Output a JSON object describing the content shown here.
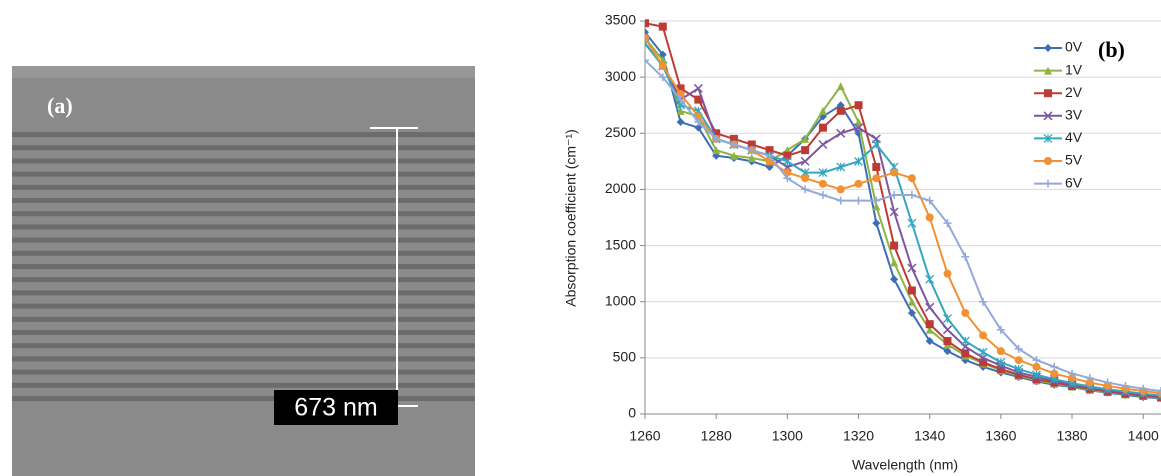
{
  "image": {
    "panel_label": "(a)",
    "scale_label": "673 nm"
  },
  "chart_data": {
    "type": "line",
    "panel_label": "(b)",
    "xlabel": "Wavelength (nm)",
    "ylabel": "Absorption coefficient (cm⁻¹)",
    "x": [
      1260,
      1265,
      1270,
      1275,
      1280,
      1285,
      1290,
      1295,
      1300,
      1305,
      1310,
      1315,
      1320,
      1325,
      1330,
      1335,
      1340,
      1345,
      1350,
      1355,
      1360,
      1365,
      1370,
      1375,
      1380,
      1385,
      1390,
      1395,
      1400,
      1405
    ],
    "series": [
      {
        "name": "0V",
        "color": "#3d6eb4",
        "marker": "diamond",
        "values": [
          3400,
          3200,
          2600,
          2550,
          2300,
          2280,
          2250,
          2200,
          2300,
          2450,
          2650,
          2750,
          2500,
          1700,
          1200,
          900,
          650,
          560,
          480,
          420,
          370,
          330,
          290,
          260,
          240,
          210,
          190,
          170,
          150,
          140
        ]
      },
      {
        "name": "1V",
        "color": "#8db443",
        "marker": "triangle",
        "values": [
          3350,
          3150,
          2700,
          2650,
          2350,
          2300,
          2280,
          2250,
          2350,
          2450,
          2700,
          2920,
          2600,
          1850,
          1350,
          1000,
          750,
          620,
          520,
          450,
          390,
          340,
          300,
          270,
          245,
          215,
          195,
          175,
          160,
          145
        ]
      },
      {
        "name": "2V",
        "color": "#be3a34",
        "marker": "square",
        "values": [
          3480,
          3450,
          2900,
          2800,
          2500,
          2450,
          2400,
          2350,
          2300,
          2350,
          2550,
          2700,
          2750,
          2200,
          1500,
          1100,
          800,
          650,
          540,
          460,
          400,
          350,
          310,
          280,
          250,
          225,
          200,
          180,
          165,
          150
        ]
      },
      {
        "name": "3V",
        "color": "#7d56a2",
        "marker": "cross",
        "values": [
          3300,
          3100,
          2800,
          2900,
          2450,
          2400,
          2350,
          2300,
          2200,
          2250,
          2400,
          2500,
          2550,
          2450,
          1800,
          1300,
          950,
          750,
          600,
          500,
          430,
          370,
          330,
          295,
          260,
          235,
          210,
          190,
          175,
          160
        ]
      },
      {
        "name": "4V",
        "color": "#35a7bf",
        "marker": "star",
        "values": [
          3300,
          3100,
          2750,
          2700,
          2450,
          2400,
          2350,
          2300,
          2250,
          2150,
          2150,
          2200,
          2250,
          2400,
          2200,
          1700,
          1200,
          850,
          650,
          550,
          460,
          400,
          350,
          310,
          275,
          245,
          220,
          200,
          180,
          165
        ]
      },
      {
        "name": "5V",
        "color": "#f29133",
        "marker": "circle",
        "values": [
          3350,
          3100,
          2850,
          2650,
          2450,
          2400,
          2350,
          2250,
          2150,
          2100,
          2050,
          2000,
          2050,
          2100,
          2150,
          2100,
          1750,
          1250,
          900,
          700,
          560,
          480,
          420,
          360,
          320,
          280,
          250,
          225,
          205,
          185
        ]
      },
      {
        "name": "6V",
        "color": "#93a9d8",
        "marker": "plus",
        "values": [
          3150,
          3000,
          2800,
          2600,
          2450,
          2400,
          2350,
          2300,
          2100,
          2000,
          1950,
          1900,
          1900,
          1900,
          1950,
          1950,
          1900,
          1700,
          1400,
          1000,
          750,
          580,
          480,
          420,
          360,
          320,
          280,
          250,
          225,
          205
        ]
      }
    ],
    "xlim": [
      1260,
      1405
    ],
    "ylim": [
      0,
      3500
    ],
    "xticks": [
      1260,
      1280,
      1300,
      1320,
      1340,
      1360,
      1380,
      1400
    ],
    "yticks": [
      0,
      500,
      1000,
      1500,
      2000,
      2500,
      3000,
      3500
    ],
    "grid": true,
    "legend": "upper right"
  }
}
